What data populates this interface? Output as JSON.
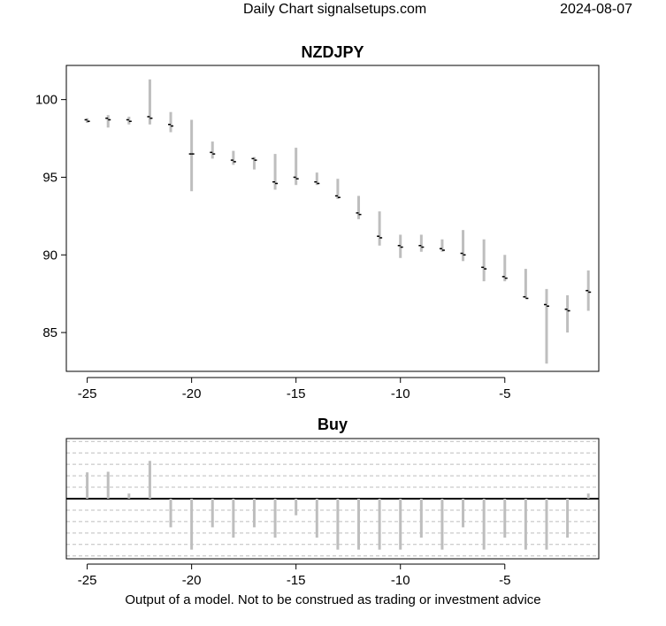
{
  "header": {
    "title": "Daily Chart signalsetups.com",
    "date": "2024-08-07"
  },
  "footer": {
    "disclaimer": "Output of a model. Not to be construed as trading or investment advice"
  },
  "colors": {
    "bar": "#bebebe",
    "point": "#000000",
    "frame": "#000000",
    "grid": "#bebebe"
  },
  "chart_data": [
    {
      "type": "ohlc",
      "title": "NZDJPY",
      "xlim": [
        -26,
        -0.5
      ],
      "ylim": [
        82.5,
        102.2
      ],
      "x_ticks": [
        -25,
        -20,
        -15,
        -10,
        -5
      ],
      "y_ticks": [
        85,
        90,
        95,
        100
      ],
      "x": [
        -25,
        -24,
        -23,
        -22,
        -21,
        -20,
        -19,
        -18,
        -17,
        -16,
        -15,
        -14,
        -13,
        -12,
        -11,
        -10,
        -9,
        -8,
        -7,
        -6,
        -5,
        -4,
        -3,
        -2,
        -1
      ],
      "open": [
        98.7,
        98.8,
        98.7,
        98.9,
        98.4,
        96.5,
        96.6,
        96.1,
        96.2,
        94.7,
        95.0,
        94.7,
        93.8,
        92.7,
        91.2,
        90.6,
        90.6,
        90.4,
        90.1,
        89.2,
        88.6,
        87.3,
        86.8,
        86.5,
        87.7
      ],
      "high": [
        98.8,
        99.0,
        98.9,
        101.3,
        99.2,
        98.7,
        97.3,
        96.7,
        96.3,
        96.5,
        96.9,
        95.3,
        94.9,
        93.8,
        92.8,
        91.3,
        91.3,
        91.0,
        91.6,
        91.0,
        90.0,
        89.1,
        87.8,
        87.4,
        89.0
      ],
      "low": [
        98.5,
        98.2,
        98.4,
        98.4,
        97.9,
        94.1,
        96.2,
        95.8,
        95.5,
        94.2,
        94.5,
        94.5,
        93.6,
        92.3,
        90.6,
        89.8,
        90.2,
        90.2,
        89.6,
        88.3,
        88.3,
        87.2,
        83.0,
        85.0,
        86.4
      ],
      "close": [
        98.6,
        98.7,
        98.6,
        98.8,
        98.3,
        96.5,
        96.5,
        96.0,
        96.1,
        94.6,
        94.9,
        94.6,
        93.7,
        92.6,
        91.1,
        90.5,
        90.5,
        90.3,
        90.0,
        89.1,
        88.5,
        87.2,
        86.7,
        86.4,
        87.6
      ]
    },
    {
      "type": "bar",
      "title": "Buy",
      "xlim": [
        -26,
        -0.5
      ],
      "ylim": [
        -1.05,
        1.05
      ],
      "x_ticks": [
        -25,
        -20,
        -15,
        -10,
        -5
      ],
      "x": [
        -25,
        -24,
        -23,
        -22,
        -21,
        -20,
        -19,
        -18,
        -17,
        -16,
        -15,
        -14,
        -13,
        -12,
        -11,
        -10,
        -9,
        -8,
        -7,
        -6,
        -5,
        -4,
        -3,
        -2,
        -1
      ],
      "values": [
        0.46,
        0.47,
        0.09,
        0.66,
        -0.5,
        -0.89,
        -0.5,
        -0.68,
        -0.5,
        -0.68,
        -0.29,
        -0.68,
        -0.89,
        -0.89,
        -0.89,
        -0.89,
        -0.68,
        -0.89,
        -0.5,
        -0.89,
        -0.68,
        -0.89,
        -0.89,
        -0.68,
        0.09
      ],
      "grid": true
    }
  ]
}
